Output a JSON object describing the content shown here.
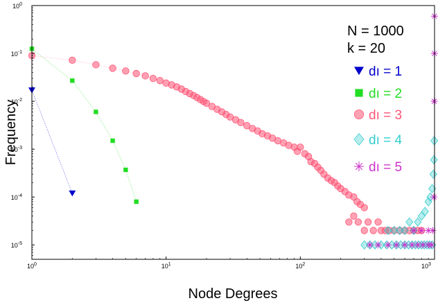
{
  "chart_data": {
    "type": "scatter",
    "xlabel": "Node Degrees",
    "ylabel": "Frequency",
    "xscale": "log",
    "yscale": "log",
    "xlim": [
      1,
      1000
    ],
    "ylim": [
      5e-06,
      1
    ],
    "x_ticks": [
      {
        "value": 1,
        "base": "10",
        "exp": "0"
      },
      {
        "value": 10,
        "base": "10",
        "exp": "1"
      },
      {
        "value": 100,
        "base": "10",
        "exp": "2"
      },
      {
        "value": 1000,
        "base": "10",
        "exp": "3"
      }
    ],
    "y_ticks": [
      {
        "value": 1,
        "base": "10",
        "exp": "0"
      },
      {
        "value": 0.1,
        "base": "10",
        "exp": "-1"
      },
      {
        "value": 0.01,
        "base": "10",
        "exp": "-2"
      },
      {
        "value": 0.001,
        "base": "10",
        "exp": "-3"
      },
      {
        "value": 0.0001,
        "base": "10",
        "exp": "-4"
      },
      {
        "value": 1e-05,
        "base": "10",
        "exp": "-5"
      }
    ],
    "grid": false,
    "legend_position": "right",
    "annotations": [
      "N = 1000",
      "k  = 20"
    ],
    "series": [
      {
        "name": "dı = 1",
        "marker": "triangle-down",
        "color": "#0000cc",
        "points": [
          [
            1,
            0.017
          ],
          [
            2,
            0.00012
          ]
        ]
      },
      {
        "name": "dı = 2",
        "marker": "square",
        "color": "#22dd22",
        "points": [
          [
            1,
            0.125
          ],
          [
            2,
            0.027
          ],
          [
            3,
            0.006
          ],
          [
            4,
            0.0015
          ],
          [
            5,
            0.00037
          ],
          [
            6,
            8e-05
          ]
        ]
      },
      {
        "name": "dı = 3",
        "marker": "circle",
        "color": "#ff5577",
        "points": [
          [
            1,
            0.09
          ],
          [
            2,
            0.072
          ],
          [
            3,
            0.058
          ],
          [
            4,
            0.049
          ],
          [
            5,
            0.043
          ],
          [
            6,
            0.038
          ],
          [
            7,
            0.034
          ],
          [
            8,
            0.03
          ],
          [
            9,
            0.027
          ],
          [
            10,
            0.024
          ],
          [
            11,
            0.022
          ],
          [
            12,
            0.02
          ],
          [
            13,
            0.018
          ],
          [
            14,
            0.016
          ],
          [
            15,
            0.0145
          ],
          [
            16,
            0.0132
          ],
          [
            17,
            0.012
          ],
          [
            18,
            0.0109
          ],
          [
            19,
            0.0099
          ],
          [
            20,
            0.0091
          ],
          [
            22,
            0.0078
          ],
          [
            24,
            0.0068
          ],
          [
            26,
            0.006
          ],
          [
            28,
            0.0053
          ],
          [
            30,
            0.0047
          ],
          [
            33,
            0.0041
          ],
          [
            36,
            0.0036
          ],
          [
            40,
            0.0031
          ],
          [
            44,
            0.0027
          ],
          [
            48,
            0.0024
          ],
          [
            52,
            0.0021
          ],
          [
            57,
            0.0019
          ],
          [
            62,
            0.0017
          ],
          [
            68,
            0.0015
          ],
          [
            75,
            0.00135
          ],
          [
            82,
            0.0012
          ],
          [
            90,
            0.0011
          ],
          [
            95,
            0.0009
          ],
          [
            100,
            0.0011
          ],
          [
            108,
            0.0008
          ],
          [
            115,
            0.0007
          ],
          [
            120,
            0.00055
          ],
          [
            128,
            0.0005
          ],
          [
            135,
            0.00042
          ],
          [
            142,
            0.00036
          ],
          [
            150,
            0.0003
          ],
          [
            160,
            0.00025
          ],
          [
            170,
            0.00022
          ],
          [
            180,
            0.0002
          ],
          [
            190,
            0.00017
          ],
          [
            200,
            0.00015
          ],
          [
            215,
            0.00013
          ],
          [
            230,
            0.00011
          ],
          [
            250,
            0.0001
          ],
          [
            265,
            8e-05
          ],
          [
            280,
            7e-05
          ],
          [
            300,
            6e-05
          ],
          [
            230,
            3e-05
          ],
          [
            250,
            4e-05
          ],
          [
            270,
            3e-05
          ],
          [
            300,
            2e-05
          ],
          [
            320,
            3e-05
          ],
          [
            350,
            2e-05
          ],
          [
            380,
            3e-05
          ],
          [
            400,
            2e-05
          ],
          [
            430,
            2e-05
          ],
          [
            460,
            2e-05
          ],
          [
            500,
            2e-05
          ],
          [
            550,
            2e-05
          ],
          [
            600,
            2e-05
          ],
          [
            650,
            2e-05
          ],
          [
            700,
            2e-05
          ],
          [
            750,
            2e-05
          ],
          [
            800,
            2e-05
          ]
        ]
      },
      {
        "name": "dı = 4",
        "marker": "diamond",
        "color": "#33cccc",
        "points": [
          [
            300,
            1e-05
          ],
          [
            330,
            1e-05
          ],
          [
            360,
            1e-05
          ],
          [
            400,
            1e-05
          ],
          [
            440,
            1e-05
          ],
          [
            480,
            1e-05
          ],
          [
            520,
            1e-05
          ],
          [
            560,
            1e-05
          ],
          [
            600,
            1e-05
          ],
          [
            640,
            1e-05
          ],
          [
            680,
            1e-05
          ],
          [
            720,
            1e-05
          ],
          [
            760,
            1e-05
          ],
          [
            800,
            1e-05
          ],
          [
            840,
            1e-05
          ],
          [
            880,
            1e-05
          ],
          [
            920,
            1e-05
          ],
          [
            960,
            1e-05
          ],
          [
            450,
            2e-05
          ],
          [
            500,
            2e-05
          ],
          [
            550,
            2e-05
          ],
          [
            600,
            2e-05
          ],
          [
            650,
            3e-05
          ],
          [
            700,
            2e-05
          ],
          [
            750,
            3e-05
          ],
          [
            800,
            4e-05
          ],
          [
            850,
            5e-05
          ],
          [
            900,
            8e-05
          ],
          [
            930,
            0.0001
          ],
          [
            960,
            0.00015
          ],
          [
            980,
            0.0003
          ],
          [
            990,
            0.0006
          ],
          [
            995,
            0.0015
          ]
        ]
      },
      {
        "name": "dı = 5",
        "marker": "asterisk",
        "color": "#cc33cc",
        "points": [
          [
            330,
            1e-05
          ],
          [
            380,
            1e-05
          ],
          [
            450,
            1e-05
          ],
          [
            520,
            1e-05
          ],
          [
            600,
            1e-05
          ],
          [
            680,
            1e-05
          ],
          [
            750,
            1e-05
          ],
          [
            820,
            1e-05
          ],
          [
            900,
            1e-05
          ],
          [
            950,
            1e-05
          ],
          [
            700,
            2e-05
          ],
          [
            800,
            2e-05
          ],
          [
            900,
            2e-05
          ],
          [
            970,
            2e-05
          ],
          [
            990,
            0.0001
          ],
          [
            995,
            0.01
          ],
          [
            998,
            0.1
          ],
          [
            999,
            0.6
          ]
        ]
      }
    ]
  }
}
